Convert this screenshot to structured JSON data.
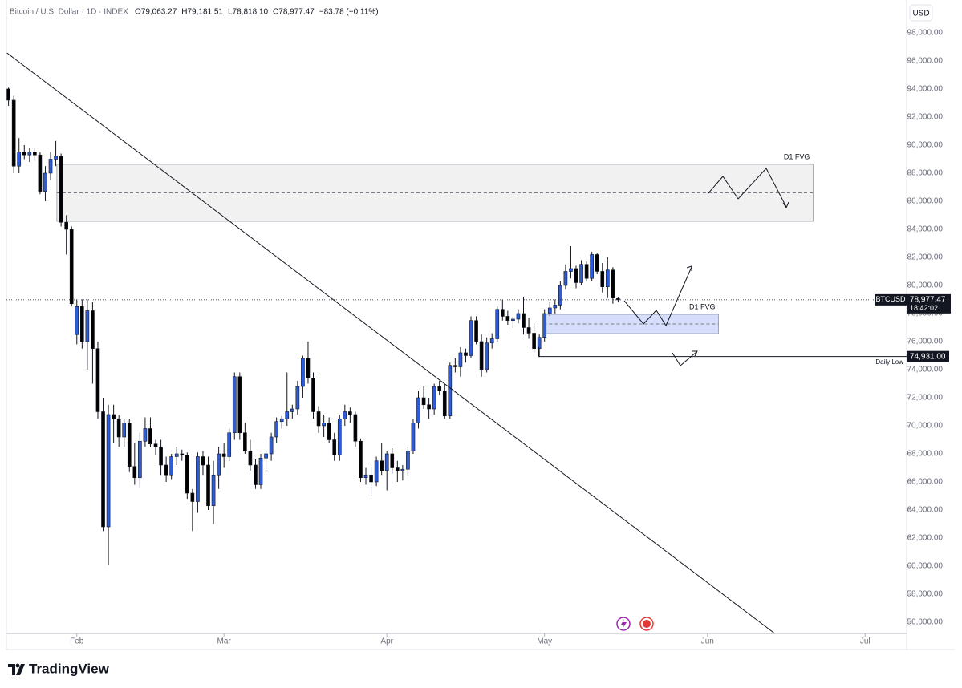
{
  "chart_data": {
    "type": "candlestick",
    "title": "Bitcoin / U.S. Dollar · 1D · INDEX",
    "ohlc_labels": [
      "O79,063.27",
      "H79,181.51",
      "L78,818.10",
      "C78,977.47",
      "−83.78 (−0.11%)"
    ],
    "currency": "USD",
    "x": [
      0,
      1,
      2,
      3,
      4,
      5,
      6,
      7,
      8,
      9,
      10,
      11,
      12,
      13,
      14,
      15,
      16,
      17,
      18,
      19,
      20,
      21,
      22,
      23,
      24,
      25,
      26,
      27,
      28,
      29,
      30,
      31,
      32,
      33,
      34,
      35,
      36,
      37,
      38,
      39,
      40,
      41,
      42,
      43,
      44,
      45,
      46,
      47,
      48,
      49,
      50,
      51,
      52,
      53,
      54,
      55,
      56,
      57,
      58,
      59,
      60,
      61,
      62,
      63,
      64,
      65,
      66,
      67,
      68,
      69,
      70,
      71,
      72,
      73,
      74,
      75,
      76,
      77,
      78,
      79,
      80,
      81,
      82,
      83,
      84,
      85,
      86,
      87,
      88,
      89,
      90,
      91,
      92,
      93,
      94,
      95,
      96,
      97,
      98,
      99,
      100,
      101,
      102,
      103,
      104,
      105,
      106,
      107,
      108,
      109,
      110,
      111,
      112,
      113,
      114,
      115,
      116
    ],
    "xlim": [
      -0.4,
      170.9
    ],
    "xticks": [
      {
        "value": 13,
        "label": "Feb"
      },
      {
        "value": 41,
        "label": "Mar"
      },
      {
        "value": 72,
        "label": "Apr"
      },
      {
        "value": 102,
        "label": "May"
      },
      {
        "value": 133,
        "label": "Jun"
      },
      {
        "value": 163,
        "label": "Jul"
      }
    ],
    "ylim": [
      55200,
      100340
    ],
    "yticks": [
      {
        "value": 56000,
        "label": "56,000.00"
      },
      {
        "value": 58000,
        "label": "58,000.00"
      },
      {
        "value": 60000,
        "label": "60,000.00"
      },
      {
        "value": 62000,
        "label": "62,000.00"
      },
      {
        "value": 64000,
        "label": "64,000.00"
      },
      {
        "value": 66000,
        "label": "66,000.00"
      },
      {
        "value": 68000,
        "label": "68,000.00"
      },
      {
        "value": 70000,
        "label": "70,000.00"
      },
      {
        "value": 72000,
        "label": "72,000.00"
      },
      {
        "value": 74000,
        "label": "74,000.00"
      },
      {
        "value": 76000,
        "label": "76,000.00"
      },
      {
        "value": 78000,
        "label": "78,000.00"
      },
      {
        "value": 80000,
        "label": "80,000.00"
      },
      {
        "value": 82000,
        "label": "82,000.00"
      },
      {
        "value": 84000,
        "label": "84,000.00"
      },
      {
        "value": 86000,
        "label": "86,000.00"
      },
      {
        "value": 88000,
        "label": "88,000.00"
      },
      {
        "value": 90000,
        "label": "90,000.00"
      },
      {
        "value": 92000,
        "label": "92,000.00"
      },
      {
        "value": 94000,
        "label": "94,000.00"
      },
      {
        "value": 96000,
        "label": "96,000.00"
      },
      {
        "value": 98000,
        "label": "98,000.00"
      }
    ],
    "series": [
      {
        "name": "BTCUSD",
        "up_color": "#2e5bd6",
        "down_color": "#000000",
        "open": [
          94000,
          93200,
          88500,
          89500,
          89300,
          89500,
          89300,
          86700,
          88000,
          89000,
          89200,
          84500,
          84000,
          76500,
          78500,
          76000,
          78200,
          75500,
          71000,
          62800,
          70800,
          70500,
          69200,
          70200,
          67100,
          66300,
          68900,
          69800,
          68700,
          68500,
          67200,
          66500,
          67800,
          68000,
          67900,
          65200,
          64600,
          67800,
          67200,
          64300,
          66500,
          68000,
          67800,
          69500,
          73500,
          69500,
          68200,
          67200,
          65800,
          67700,
          68000,
          69200,
          70300,
          70500,
          71000,
          71200,
          72800,
          74800,
          73400,
          71000,
          70000,
          70200,
          69000,
          67900,
          70500,
          71000,
          70800,
          68900,
          66300,
          66500,
          66000,
          67500,
          66800,
          68000,
          67000,
          66800,
          66900,
          68200,
          70200,
          72000,
          71500,
          71200,
          72800,
          72500,
          70700,
          74300,
          74200,
          75200,
          75000,
          77500,
          76000,
          74000,
          75900,
          76200,
          78300,
          77800,
          77500,
          77600,
          78000,
          77000,
          76600,
          75500,
          76300,
          78000,
          78400,
          78600,
          80000,
          81000,
          81200,
          80200,
          81500,
          80500,
          82200,
          81000,
          79900,
          81100,
          79063.27
        ],
        "high": [
          94100,
          93500,
          90500,
          90000,
          89800,
          89800,
          89500,
          88500,
          89500,
          90300,
          89400,
          85000,
          84200,
          79000,
          79000,
          79000,
          78800,
          76000,
          72000,
          71500,
          71500,
          70800,
          70500,
          70500,
          68800,
          69500,
          70600,
          70600,
          69000,
          69000,
          67800,
          68000,
          68500,
          68300,
          68100,
          65500,
          68100,
          68200,
          67800,
          67500,
          68500,
          68800,
          69800,
          73800,
          73800,
          70200,
          69000,
          67600,
          68000,
          68300,
          69500,
          70600,
          70700,
          73800,
          71500,
          73200,
          75000,
          76000,
          73800,
          71400,
          70800,
          70600,
          69500,
          70800,
          71500,
          71300,
          71000,
          69100,
          67000,
          67000,
          67800,
          68800,
          68200,
          68400,
          67500,
          67200,
          68500,
          70500,
          72500,
          72800,
          72000,
          73000,
          73200,
          73000,
          74500,
          74800,
          75600,
          75500,
          77800,
          77800,
          76500,
          76300,
          76600,
          78500,
          79000,
          78200,
          77800,
          78300,
          79200,
          77700,
          77300,
          76500,
          78300,
          78800,
          79000,
          80300,
          81500,
          82800,
          81400,
          81800,
          81700,
          82400,
          82300,
          81600,
          82000,
          81300,
          79181.51
        ],
        "low": [
          92800,
          88000,
          88000,
          89000,
          88800,
          88900,
          86500,
          86000,
          87500,
          88500,
          84200,
          82200,
          78500,
          75800,
          75500,
          74000,
          73000,
          70500,
          62500,
          60100,
          68800,
          68500,
          68500,
          66700,
          65800,
          65600,
          68500,
          68500,
          67900,
          66500,
          66000,
          66200,
          67200,
          67500,
          64800,
          62500,
          63800,
          66500,
          64000,
          63000,
          65500,
          67000,
          67500,
          69000,
          69000,
          68000,
          66800,
          65500,
          65500,
          66800,
          67500,
          68800,
          69800,
          70000,
          70500,
          70800,
          72000,
          73000,
          70500,
          69500,
          69200,
          68800,
          67500,
          67500,
          70000,
          70200,
          68500,
          66000,
          65800,
          65000,
          65700,
          66500,
          65400,
          66600,
          66000,
          66100,
          66500,
          68000,
          69800,
          71200,
          70500,
          70800,
          72200,
          70500,
          70500,
          73800,
          73500,
          74500,
          74800,
          75800,
          73500,
          73800,
          75500,
          76000,
          77500,
          77200,
          77000,
          77300,
          76500,
          76200,
          75200,
          74900,
          76000,
          77800,
          78000,
          78300,
          79700,
          80500,
          79800,
          80000,
          80300,
          80300,
          80800,
          79500,
          79100,
          78700,
          78818.1
        ],
        "close": [
          93200,
          88500,
          89500,
          89300,
          89500,
          89300,
          86700,
          88000,
          89000,
          89200,
          84500,
          84000,
          78700,
          78500,
          76000,
          78200,
          75500,
          71000,
          62800,
          70800,
          70500,
          69200,
          70200,
          67100,
          66300,
          68900,
          69800,
          68700,
          68500,
          67200,
          66500,
          67800,
          68000,
          67900,
          65200,
          64600,
          67800,
          67200,
          64300,
          66500,
          68000,
          67800,
          69500,
          73500,
          69500,
          68200,
          67200,
          65800,
          67700,
          68000,
          69200,
          70300,
          70500,
          71000,
          71200,
          72800,
          74800,
          73400,
          71000,
          70000,
          70200,
          69000,
          67900,
          70500,
          71000,
          70800,
          68900,
          66300,
          66500,
          66000,
          67500,
          66800,
          68000,
          67000,
          66800,
          66900,
          68200,
          70200,
          72000,
          71500,
          71200,
          72800,
          72500,
          70700,
          74300,
          74200,
          75200,
          75000,
          77500,
          76000,
          74000,
          75900,
          76200,
          78300,
          77800,
          77500,
          77600,
          78000,
          77000,
          76600,
          75500,
          76300,
          78000,
          78400,
          78600,
          80000,
          81000,
          81200,
          80200,
          81500,
          80500,
          82200,
          81000,
          79900,
          81100,
          79100,
          78977.47
        ],
        "last_label": "78,977.47",
        "countdown": "18:42:02"
      }
    ],
    "zones": [
      {
        "label": "D1 FVG",
        "x": [
          9.2,
          153.1
        ],
        "y": [
          84570,
          88630
        ],
        "mid": 86600,
        "color": "#f1f1f1"
      },
      {
        "label": "D1 FVG",
        "x": [
          101.8,
          135.1
        ],
        "y": [
          76570,
          77940
        ],
        "mid": 77255,
        "color": "#d6defc"
      }
    ],
    "daily_low": {
      "label": "Daily Low",
      "value": 74931,
      "value_label": "74,931.00",
      "x_start": 100.9
    },
    "trendline": {
      "x": [
        -0.3,
        145.8
      ],
      "y": [
        96570,
        55200
      ]
    }
  },
  "footer": {
    "brand": "TradingView"
  }
}
